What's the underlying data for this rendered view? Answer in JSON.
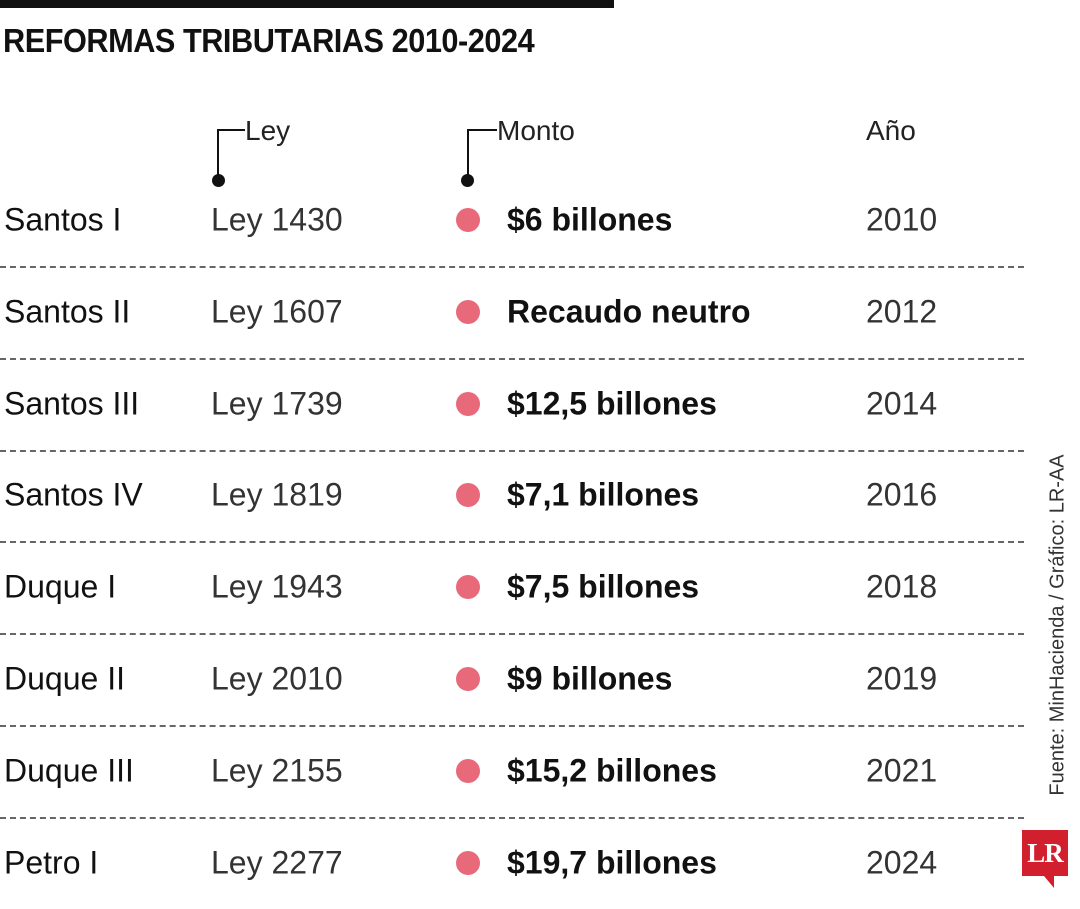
{
  "title": "REFORMAS TRIBUTARIAS 2010-2024",
  "headers": {
    "ley": "Ley",
    "monto": "Monto",
    "anio": "Año"
  },
  "accent_color": "#e8697a",
  "rows": [
    {
      "gobierno": "Santos I",
      "ley": "Ley 1430",
      "monto": "$6 billones",
      "anio": "2010"
    },
    {
      "gobierno": "Santos II",
      "ley": "Ley 1607",
      "monto": "Recaudo  neutro",
      "anio": "2012"
    },
    {
      "gobierno": "Santos III",
      "ley": "Ley 1739",
      "monto": "$12,5 billones",
      "anio": "2014"
    },
    {
      "gobierno": "Santos IV",
      "ley": "Ley 1819",
      "monto": "$7,1 billones",
      "anio": "2016"
    },
    {
      "gobierno": "Duque I",
      "ley": "Ley 1943",
      "monto": "$7,5 billones",
      "anio": "2018"
    },
    {
      "gobierno": "Duque II",
      "ley": "Ley 2010",
      "monto": "$9 billones",
      "anio": "2019"
    },
    {
      "gobierno": "Duque III",
      "ley": "Ley 2155",
      "monto": "$15,2 billones",
      "anio": "2021"
    },
    {
      "gobierno": "Petro I",
      "ley": "Ley 2277",
      "monto": "$19,7 billones",
      "anio": "2024"
    }
  ],
  "source": "Fuente: MinHacienda / Gráfico: LR-AA",
  "logo": "LR"
}
